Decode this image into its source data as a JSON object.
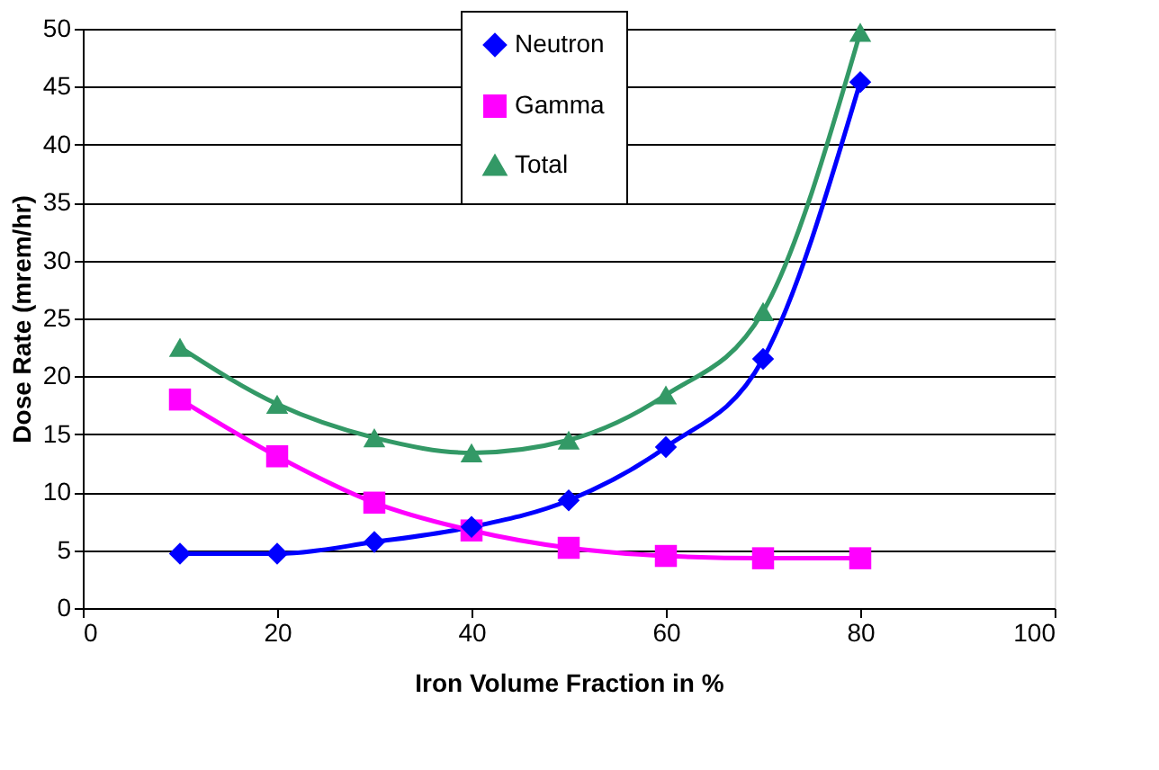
{
  "chart_data": {
    "type": "line",
    "xlabel": "Iron Volume Fraction in %",
    "ylabel": "Dose Rate (mrem/hr)",
    "x": [
      10,
      20,
      30,
      40,
      50,
      60,
      70,
      80
    ],
    "series": [
      {
        "name": "Neutron",
        "color": "#0000ff",
        "marker": "diamond",
        "values": [
          4.7,
          4.7,
          5.7,
          7.0,
          9.3,
          13.9,
          21.5,
          45.4
        ]
      },
      {
        "name": "Gamma",
        "color": "#ff00ff",
        "marker": "square",
        "values": [
          18.0,
          13.1,
          9.1,
          6.7,
          5.2,
          4.5,
          4.3,
          4.3
        ]
      },
      {
        "name": "Total",
        "color": "#339966",
        "marker": "triangle",
        "values": [
          22.5,
          17.6,
          14.7,
          13.4,
          14.5,
          18.4,
          25.6,
          49.7
        ]
      }
    ],
    "xlim": [
      0,
      100
    ],
    "xticks": [
      0,
      20,
      40,
      60,
      80,
      100
    ],
    "ylim": [
      0,
      50
    ],
    "yticks": [
      0,
      5,
      10,
      15,
      20,
      25,
      30,
      35,
      40,
      45,
      50
    ],
    "grid": "y",
    "legend": "top",
    "line_style": "solid"
  }
}
